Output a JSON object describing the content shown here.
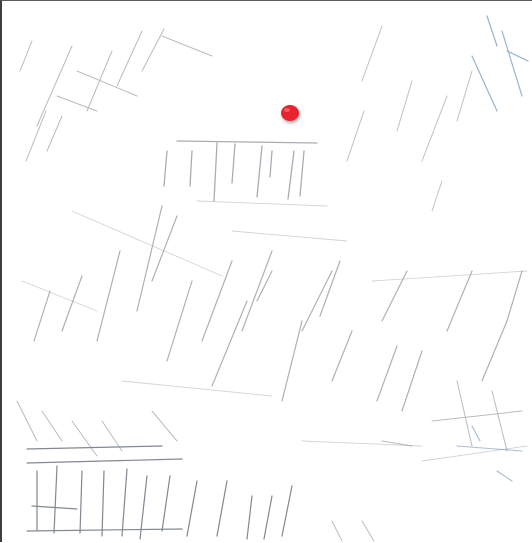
{
  "map": {
    "style": "faint grayscale cadastral / street linework (scanned)",
    "marker": {
      "icon": "location-dot-icon",
      "color": "#e8242d"
    },
    "colors": {
      "paper": "#ffffff",
      "linework": "#7d8590",
      "linework_dark": "#2f3a48",
      "accent_blue": "#6f93b7",
      "frame": "#4a4a4a"
    }
  }
}
